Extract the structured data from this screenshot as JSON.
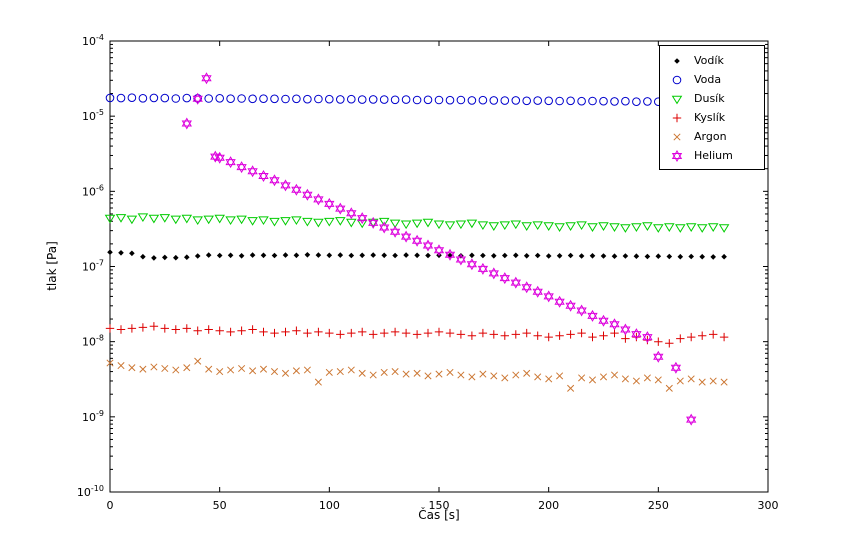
{
  "figure": {
    "background": "#ffffff",
    "axes_background": "#ffffff",
    "axis_color": "#000000",
    "text_color": "#000000"
  },
  "chart_data": {
    "type": "scatter",
    "title": "",
    "xlabel": "Čas [s]",
    "ylabel": "tlak [Pa]",
    "xlim": [
      0,
      300
    ],
    "ylog_range": [
      -10,
      -4
    ],
    "x_ticks": [
      0,
      50,
      100,
      150,
      200,
      250,
      300
    ],
    "y_tick_exponents": [
      -10,
      -9,
      -8,
      -7,
      -6,
      -5,
      -4
    ],
    "grid": false,
    "legend_position": "top-right",
    "x_common": [
      0,
      5,
      10,
      15,
      20,
      25,
      30,
      35,
      40,
      45,
      50,
      55,
      60,
      65,
      70,
      75,
      80,
      85,
      90,
      95,
      100,
      105,
      110,
      115,
      120,
      125,
      130,
      135,
      140,
      145,
      150,
      155,
      160,
      165,
      170,
      175,
      180,
      185,
      190,
      195,
      200,
      205,
      210,
      215,
      220,
      225,
      230,
      235,
      240,
      245,
      250,
      255,
      260,
      265,
      270,
      275,
      280
    ],
    "series": [
      {
        "name": "Vodík",
        "marker": "diamond",
        "color": "#000000",
        "y": [
          1.55e-07,
          1.52e-07,
          1.5e-07,
          1.35e-07,
          1.3e-07,
          1.32e-07,
          1.31e-07,
          1.33e-07,
          1.38e-07,
          1.42e-07,
          1.4e-07,
          1.41e-07,
          1.39e-07,
          1.42e-07,
          1.41e-07,
          1.4e-07,
          1.42e-07,
          1.41e-07,
          1.43e-07,
          1.42e-07,
          1.41e-07,
          1.42e-07,
          1.4e-07,
          1.41e-07,
          1.42e-07,
          1.41e-07,
          1.4e-07,
          1.42e-07,
          1.41e-07,
          1.4e-07,
          1.41e-07,
          1.4e-07,
          1.39e-07,
          1.41e-07,
          1.4e-07,
          1.39e-07,
          1.4e-07,
          1.41e-07,
          1.39e-07,
          1.4e-07,
          1.38e-07,
          1.39e-07,
          1.4e-07,
          1.38e-07,
          1.39e-07,
          1.38e-07,
          1.37e-07,
          1.38e-07,
          1.37e-07,
          1.36e-07,
          1.37e-07,
          1.36e-07,
          1.35e-07,
          1.36e-07,
          1.35e-07,
          1.34e-07,
          1.35e-07
        ]
      },
      {
        "name": "Voda",
        "marker": "circle",
        "color": "#0000cc",
        "y": [
          1.75e-05,
          1.74e-05,
          1.76e-05,
          1.73e-05,
          1.75e-05,
          1.74e-05,
          1.72e-05,
          1.74e-05,
          1.73e-05,
          1.72e-05,
          1.73e-05,
          1.71e-05,
          1.72e-05,
          1.7e-05,
          1.71e-05,
          1.7e-05,
          1.69e-05,
          1.7e-05,
          1.68e-05,
          1.69e-05,
          1.68e-05,
          1.67e-05,
          1.68e-05,
          1.66e-05,
          1.67e-05,
          1.66e-05,
          1.65e-05,
          1.66e-05,
          1.64e-05,
          1.65e-05,
          1.64e-05,
          1.63e-05,
          1.64e-05,
          1.62e-05,
          1.63e-05,
          1.62e-05,
          1.61e-05,
          1.62e-05,
          1.6e-05,
          1.61e-05,
          1.6e-05,
          1.59e-05,
          1.6e-05,
          1.58e-05,
          1.59e-05,
          1.58e-05,
          1.57e-05,
          1.58e-05,
          1.56e-05,
          1.57e-05,
          1.56e-05,
          1.55e-05,
          1.56e-05,
          1.54e-05,
          1.55e-05,
          1.54e-05,
          1.55e-05
        ]
      },
      {
        "name": "Dusík",
        "marker": "triangle-down",
        "color": "#00cc00",
        "y": [
          4.4e-07,
          4.5e-07,
          4.3e-07,
          4.6e-07,
          4.4e-07,
          4.5e-07,
          4.3e-07,
          4.4e-07,
          4.2e-07,
          4.3e-07,
          4.4e-07,
          4.2e-07,
          4.3e-07,
          4.1e-07,
          4.2e-07,
          4e-07,
          4.1e-07,
          4.2e-07,
          4e-07,
          3.9e-07,
          4e-07,
          4.1e-07,
          3.9e-07,
          3.8e-07,
          3.9e-07,
          4e-07,
          3.8e-07,
          3.7e-07,
          3.8e-07,
          3.9e-07,
          3.7e-07,
          3.6e-07,
          3.7e-07,
          3.8e-07,
          3.6e-07,
          3.5e-07,
          3.6e-07,
          3.7e-07,
          3.5e-07,
          3.6e-07,
          3.5e-07,
          3.4e-07,
          3.5e-07,
          3.6e-07,
          3.4e-07,
          3.5e-07,
          3.4e-07,
          3.3e-07,
          3.4e-07,
          3.5e-07,
          3.3e-07,
          3.4e-07,
          3.3e-07,
          3.4e-07,
          3.3e-07,
          3.4e-07,
          3.3e-07
        ]
      },
      {
        "name": "Kyslík",
        "marker": "plus",
        "color": "#dd0000",
        "y": [
          1.5e-08,
          1.45e-08,
          1.5e-08,
          1.55e-08,
          1.6e-08,
          1.5e-08,
          1.45e-08,
          1.5e-08,
          1.4e-08,
          1.45e-08,
          1.4e-08,
          1.35e-08,
          1.4e-08,
          1.45e-08,
          1.35e-08,
          1.3e-08,
          1.35e-08,
          1.4e-08,
          1.3e-08,
          1.35e-08,
          1.3e-08,
          1.25e-08,
          1.3e-08,
          1.35e-08,
          1.25e-08,
          1.3e-08,
          1.35e-08,
          1.3e-08,
          1.25e-08,
          1.3e-08,
          1.35e-08,
          1.3e-08,
          1.25e-08,
          1.2e-08,
          1.3e-08,
          1.25e-08,
          1.2e-08,
          1.25e-08,
          1.3e-08,
          1.2e-08,
          1.15e-08,
          1.2e-08,
          1.25e-08,
          1.3e-08,
          1.15e-08,
          1.2e-08,
          1.3e-08,
          1.1e-08,
          1.15e-08,
          1.05e-08,
          1e-08,
          9.5e-09,
          1.1e-08,
          1.15e-08,
          1.2e-08,
          1.25e-08,
          1.15e-08
        ]
      },
      {
        "name": "Argon",
        "marker": "x",
        "color": "#cc7733",
        "y": [
          5.2e-09,
          4.8e-09,
          4.5e-09,
          4.3e-09,
          4.6e-09,
          4.4e-09,
          4.2e-09,
          4.5e-09,
          5.5e-09,
          4.3e-09,
          4e-09,
          4.2e-09,
          4.4e-09,
          4.1e-09,
          4.3e-09,
          4e-09,
          3.8e-09,
          4.1e-09,
          4.2e-09,
          2.9e-09,
          3.9e-09,
          4e-09,
          4.2e-09,
          3.8e-09,
          3.6e-09,
          3.9e-09,
          4e-09,
          3.7e-09,
          3.8e-09,
          3.5e-09,
          3.7e-09,
          3.9e-09,
          3.6e-09,
          3.4e-09,
          3.7e-09,
          3.5e-09,
          3.3e-09,
          3.6e-09,
          3.8e-09,
          3.4e-09,
          3.2e-09,
          3.5e-09,
          2.4e-09,
          3.3e-09,
          3.1e-09,
          3.4e-09,
          3.6e-09,
          3.2e-09,
          3e-09,
          3.3e-09,
          3.1e-09,
          2.4e-09,
          3e-09,
          3.2e-09,
          2.9e-09,
          3e-09,
          2.9e-09
        ]
      },
      {
        "name": "Helium",
        "marker": "hexagram",
        "color": "#dd00dd",
        "x": [
          35,
          40,
          44,
          48,
          50,
          55,
          60,
          65,
          70,
          75,
          80,
          85,
          90,
          95,
          100,
          105,
          110,
          115,
          120,
          125,
          130,
          135,
          140,
          145,
          150,
          155,
          160,
          165,
          170,
          175,
          180,
          185,
          190,
          195,
          200,
          205,
          210,
          215,
          220,
          225,
          230,
          235,
          240,
          245,
          250,
          258,
          265
        ],
        "y": [
          8e-06,
          1.7e-05,
          3.2e-05,
          2.9e-06,
          2.8e-06,
          2.45e-06,
          2.1e-06,
          1.85e-06,
          1.6e-06,
          1.4e-06,
          1.2e-06,
          1.05e-06,
          9e-07,
          7.8e-07,
          6.8e-07,
          5.9e-07,
          5.1e-07,
          4.4e-07,
          3.8e-07,
          3.3e-07,
          2.9e-07,
          2.5e-07,
          2.2e-07,
          1.9e-07,
          1.65e-07,
          1.43e-07,
          1.24e-07,
          1.07e-07,
          9.3e-08,
          8.1e-08,
          7e-08,
          6.1e-08,
          5.3e-08,
          4.6e-08,
          4e-08,
          3.4e-08,
          3e-08,
          2.6e-08,
          2.2e-08,
          1.9e-08,
          1.7e-08,
          1.45e-08,
          1.26e-08,
          1.15e-08,
          6.3e-09,
          4.5e-09,
          9.2e-10
        ]
      }
    ]
  }
}
